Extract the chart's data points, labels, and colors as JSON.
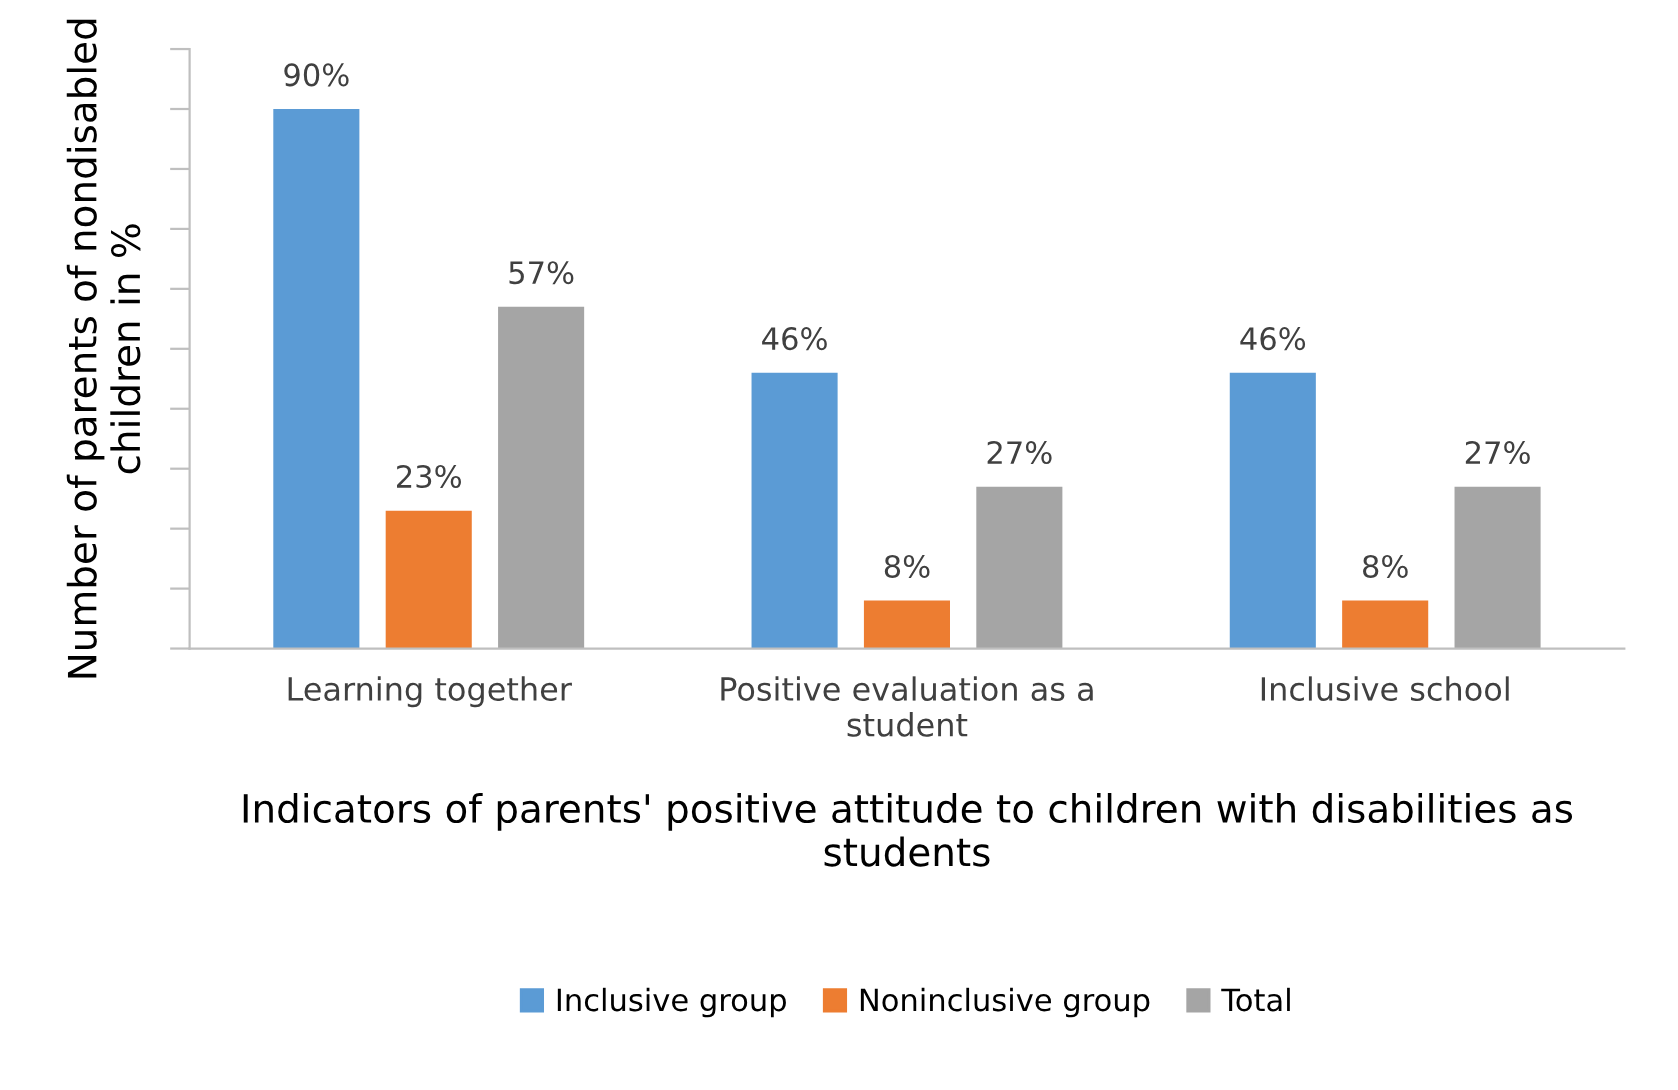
{
  "chart_data": {
    "type": "bar",
    "xlabel": "Indicators of parents' positive attitude to children with disabilities as students",
    "ylabel": "Number of parents of nondisabled children in %",
    "categories": [
      "Learning together",
      "Positive evaluation as a student",
      "Inclusive school"
    ],
    "series": [
      {
        "name": "Inclusive group",
        "color": "#5b9bd5",
        "values": [
          90,
          46,
          46
        ],
        "value_labels": [
          "90%",
          "46%",
          "46%"
        ]
      },
      {
        "name": "Noninclusive group",
        "color": "#ed7d31",
        "values": [
          23,
          8,
          8
        ],
        "value_labels": [
          "23%",
          "8%",
          "8%"
        ]
      },
      {
        "name": "Total",
        "color": "#a5a5a5",
        "values": [
          57,
          27,
          27
        ],
        "value_labels": [
          "57%",
          "27%",
          "27%"
        ]
      }
    ],
    "ylim": [
      0,
      100
    ],
    "yticks": [
      {
        "value": 0,
        "label": null
      },
      {
        "value": 10,
        "label": null
      },
      {
        "value": 20,
        "label": null
      },
      {
        "value": 30,
        "label": null
      },
      {
        "value": 40,
        "label": null
      },
      {
        "value": 50,
        "label": null
      },
      {
        "value": 60,
        "label": null
      },
      {
        "value": 70,
        "label": null
      },
      {
        "value": 80,
        "label": null
      },
      {
        "value": 90,
        "label": null
      },
      {
        "value": 100,
        "label": null
      }
    ],
    "tick_labels": "x",
    "grid": false,
    "legend": "bottom"
  }
}
